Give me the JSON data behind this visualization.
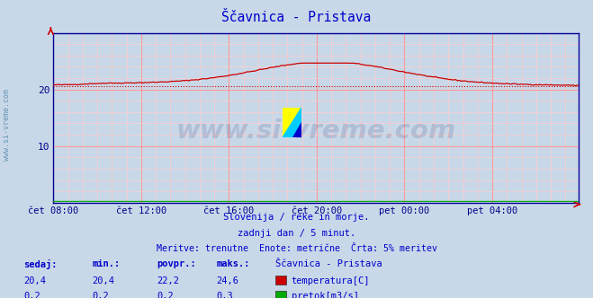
{
  "title": "Ščavnica - Pristava",
  "title_color": "#0000cc",
  "bg_color": "#c8d8e8",
  "plot_bg_color": "#c8d8e8",
  "grid_major_color": "#ff9999",
  "grid_minor_color": "#ffcccc",
  "xlabel_ticks": [
    "čet 08:00",
    "čet 12:00",
    "čet 16:00",
    "čet 20:00",
    "pet 00:00",
    "pet 04:00"
  ],
  "tick_positions": [
    0,
    48,
    96,
    144,
    192,
    240
  ],
  "total_points": 288,
  "ylim": [
    0,
    30
  ],
  "yticks": [
    10,
    20
  ],
  "ylabel_color": "#000088",
  "axis_color": "#000099",
  "temp_color": "#cc0000",
  "flow_color": "#00aa00",
  "avg_line_color": "#000000",
  "avg_value": 22.2,
  "dotted_line_value": 20.5,
  "watermark_text": "www.si-vreme.com",
  "watermark_color": "#000055",
  "watermark_alpha": 0.12,
  "footer_line1": "Slovenija / reke in morje.",
  "footer_line2": "zadnji dan / 5 minut.",
  "footer_line3": "Meritve: trenutne  Enote: metrične  Črta: 5% meritev",
  "footer_color": "#0000cc",
  "table_headers": [
    "sedaj:",
    "min.:",
    "povpr.:",
    "maks.:",
    "Ščavnica - Pristava"
  ],
  "table_row1": [
    "20,4",
    "20,4",
    "22,2",
    "24,6"
  ],
  "table_row2": [
    "0,2",
    "0,2",
    "0,2",
    "0,3"
  ],
  "legend_label1": "temperatura[C]",
  "legend_label2": "pretok[m3/s]",
  "table_color": "#0000cc",
  "side_label": "www.si-vreme.com"
}
